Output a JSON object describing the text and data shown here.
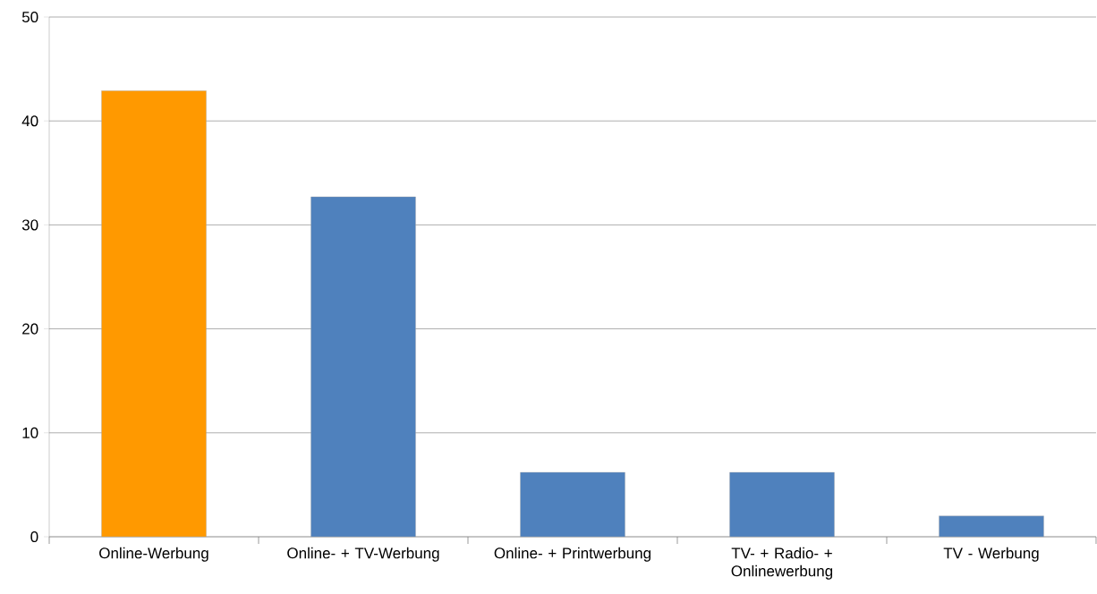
{
  "chart_data": {
    "type": "bar",
    "categories": [
      "Online-Werbung",
      "Online- + TV-Werbung",
      "Online- + Printwerbung",
      "TV- + Radio- + Onlinewerbung",
      "TV - Werbung"
    ],
    "values": [
      42.9,
      32.7,
      6.2,
      6.2,
      2.0
    ],
    "colors": [
      "#ff9900",
      "#4f81bd",
      "#4f81bd",
      "#4f81bd",
      "#4f81bd"
    ],
    "ylim": [
      0,
      50
    ],
    "yticks": [
      0,
      10,
      20,
      30,
      40,
      50
    ],
    "grid": "y"
  }
}
